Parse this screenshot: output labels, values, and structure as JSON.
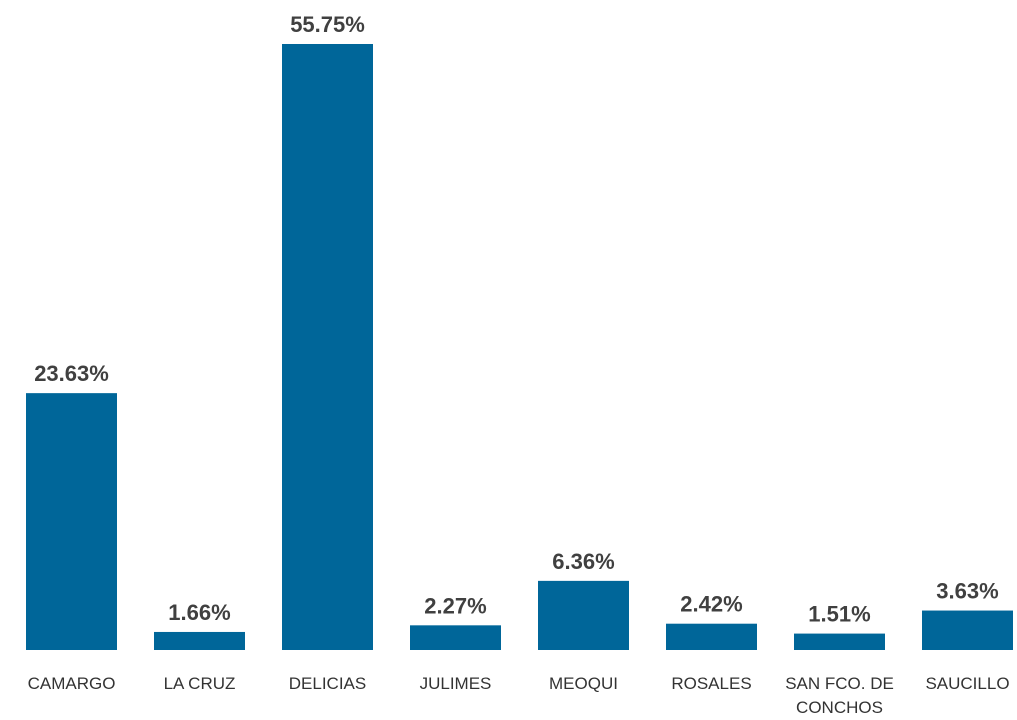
{
  "chart_data": {
    "type": "bar",
    "categories": [
      "CAMARGO",
      "LA CRUZ",
      "DELICIAS",
      "JULIMES",
      "MEOQUI",
      "ROSALES",
      "SAN FCO. DE CONCHOS",
      "SAUCILLO"
    ],
    "values": [
      23.63,
      1.66,
      55.75,
      2.27,
      6.36,
      2.42,
      1.51,
      3.63
    ],
    "value_labels": [
      "23.63%",
      "1.66%",
      "55.75%",
      "2.27%",
      "6.36%",
      "2.42%",
      "1.51%",
      "3.63%"
    ],
    "color": "#006699"
  }
}
